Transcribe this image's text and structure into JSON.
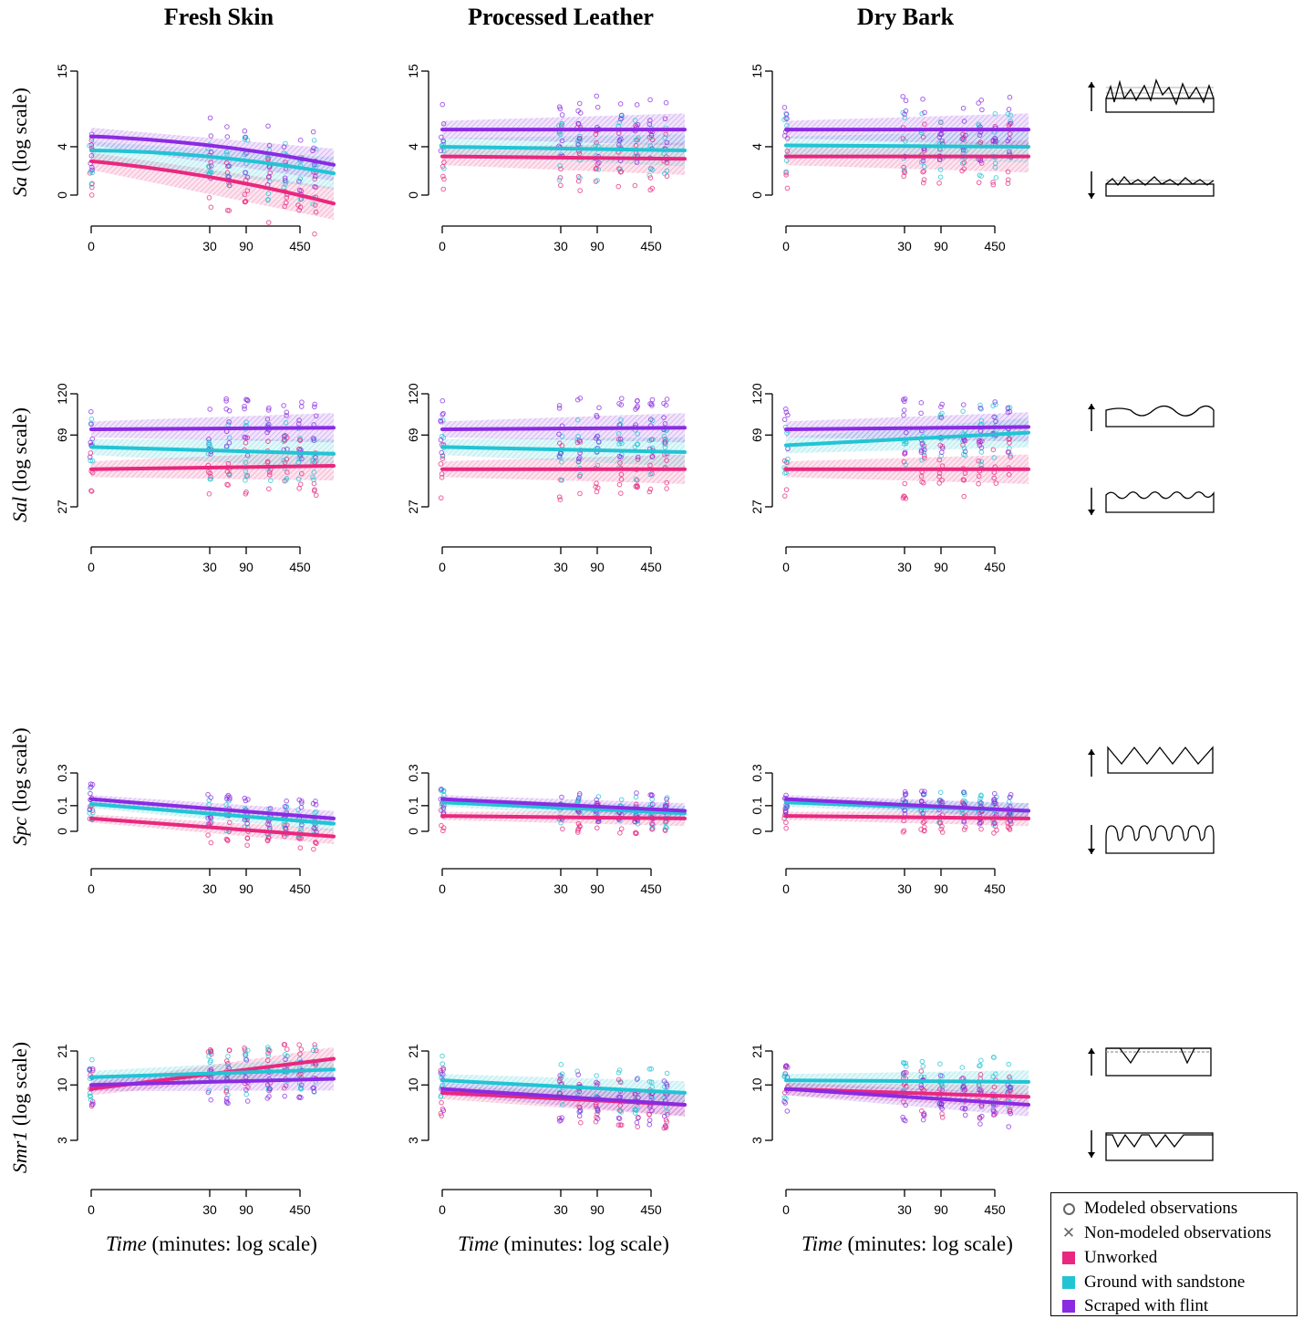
{
  "columns": [
    "Fresh Skin",
    "Processed Leather",
    "Dry Bark"
  ],
  "row_labels": [
    {
      "var": "Sa",
      "rest": " (log scale)"
    },
    {
      "var": "Sal",
      "rest": " (log scale)"
    },
    {
      "var": "Spc",
      "rest": " (log scale)"
    },
    {
      "var": "Smr1",
      "rest": " (log scale)"
    }
  ],
  "x_label": {
    "var": "Time",
    "rest": " (minutes: log scale)"
  },
  "x_ticks": [
    "0",
    "30",
    "90",
    "450"
  ],
  "y_ticks": [
    [
      "0",
      "4",
      "15"
    ],
    [
      "27",
      "69",
      "120"
    ],
    [
      "0",
      "0.1",
      "0.3"
    ],
    [
      "3",
      "10",
      "21"
    ]
  ],
  "legend": {
    "modeled": "Modeled observations",
    "nonmodeled": "Non-modeled observations",
    "unworked": "Unworked",
    "sandstone": "Ground with sandstone",
    "flint": "Scraped with flint"
  },
  "colors": {
    "unworked": "#e8287f",
    "sandstone": "#22c4d4",
    "flint": "#8a2be2"
  },
  "chart_data": {
    "type": "scatter",
    "layout": "4 rows x 3 columns faceted grid",
    "x_scale": "log",
    "y_scale": "log",
    "x_ticks": [
      0,
      30,
      90,
      450
    ],
    "series_names": [
      "Unworked",
      "Ground with sandstone",
      "Scraped with flint"
    ],
    "panels": [
      {
        "row": "Sa",
        "col": "Fresh Skin",
        "y_ticks": [
          0,
          4,
          15
        ],
        "fits": {
          "unworked": [
            2.8,
            -0.7
          ],
          "sandstone": [
            3.7,
            1.8
          ],
          "flint": [
            5.5,
            2.5
          ]
        }
      },
      {
        "row": "Sa",
        "col": "Processed Leather",
        "y_ticks": [
          0,
          4,
          15
        ],
        "fits": {
          "unworked": [
            3.2,
            3.0
          ],
          "sandstone": [
            4.0,
            3.7
          ],
          "flint": [
            6.5,
            6.5
          ]
        }
      },
      {
        "row": "Sa",
        "col": "Dry Bark",
        "y_ticks": [
          0,
          4,
          15
        ],
        "fits": {
          "unworked": [
            3.2,
            3.2
          ],
          "sandstone": [
            4.2,
            4.0
          ],
          "flint": [
            6.5,
            6.5
          ]
        }
      },
      {
        "row": "Sal",
        "col": "Fresh Skin",
        "y_ticks": [
          27,
          69,
          120
        ],
        "fits": {
          "unworked": [
            49,
            51
          ],
          "sandstone": [
            62,
            58
          ],
          "flint": [
            76,
            78
          ]
        }
      },
      {
        "row": "Sal",
        "col": "Processed Leather",
        "y_ticks": [
          27,
          69,
          120
        ],
        "fits": {
          "unworked": [
            49,
            49
          ],
          "sandstone": [
            62,
            59
          ],
          "flint": [
            76,
            78
          ]
        }
      },
      {
        "row": "Sal",
        "col": "Dry Bark",
        "y_ticks": [
          27,
          69,
          120
        ],
        "fits": {
          "unworked": [
            49,
            49
          ],
          "sandstone": [
            63,
            72
          ],
          "flint": [
            76,
            79
          ]
        }
      },
      {
        "row": "Spc",
        "col": "Fresh Skin",
        "y_ticks": [
          0,
          0.1,
          0.3
        ],
        "fits": {
          "unworked": [
            0.05,
            -0.02
          ],
          "sandstone": [
            0.11,
            0.03
          ],
          "flint": [
            0.14,
            0.05
          ]
        }
      },
      {
        "row": "Spc",
        "col": "Processed Leather",
        "y_ticks": [
          0,
          0.1,
          0.3
        ],
        "fits": {
          "unworked": [
            0.06,
            0.05
          ],
          "sandstone": [
            0.12,
            0.07
          ],
          "flint": [
            0.14,
            0.08
          ]
        }
      },
      {
        "row": "Spc",
        "col": "Dry Bark",
        "y_ticks": [
          0,
          0.1,
          0.3
        ],
        "fits": {
          "unworked": [
            0.06,
            0.05
          ],
          "sandstone": [
            0.12,
            0.08
          ],
          "flint": [
            0.14,
            0.08
          ]
        }
      },
      {
        "row": "Smr1",
        "col": "Fresh Skin",
        "y_ticks": [
          3,
          10,
          21
        ],
        "fits": {
          "unworked": [
            9.5,
            18.5
          ],
          "sandstone": [
            12.5,
            15
          ],
          "flint": [
            10,
            12
          ]
        }
      },
      {
        "row": "Smr1",
        "col": "Processed Leather",
        "y_ticks": [
          3,
          10,
          21
        ],
        "fits": {
          "unworked": [
            9,
            7.5
          ],
          "sandstone": [
            11.5,
            9
          ],
          "flint": [
            9.5,
            7.5
          ]
        }
      },
      {
        "row": "Smr1",
        "col": "Dry Bark",
        "y_ticks": [
          3,
          10,
          21
        ],
        "fits": {
          "unworked": [
            9.5,
            8.5
          ],
          "sandstone": [
            11.5,
            11
          ],
          "flint": [
            9.5,
            7.5
          ]
        }
      }
    ]
  }
}
